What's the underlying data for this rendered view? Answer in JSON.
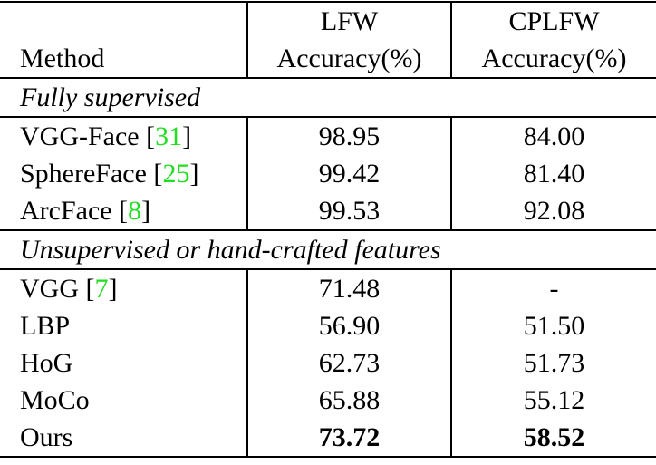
{
  "table": {
    "header": [
      [
        "",
        "LFW",
        "CPLFW"
      ],
      [
        "Method",
        "Accuracy(%)",
        "Accuracy(%)"
      ]
    ],
    "sections": [
      {
        "title": "Fully supervised",
        "rows": [
          {
            "method": [
              "VGG-Face [",
              "31",
              "]"
            ],
            "lfw": "98.95",
            "cplfw": "84.00"
          },
          {
            "method": [
              "SphereFace [",
              "25",
              "]"
            ],
            "lfw": "99.42",
            "cplfw": "81.40"
          },
          {
            "method": [
              "ArcFace [",
              "8",
              "]"
            ],
            "lfw": "99.53",
            "cplfw": "92.08"
          }
        ]
      },
      {
        "title": "Unsupervised or hand-crafted features",
        "rows": [
          {
            "method": [
              "VGG [",
              "7",
              "]"
            ],
            "lfw": "71.48",
            "cplfw": "-"
          },
          {
            "method": [
              "LBP"
            ],
            "lfw": "56.90",
            "cplfw": "51.50"
          },
          {
            "method": [
              "HoG"
            ],
            "lfw": "62.73",
            "cplfw": "51.73"
          },
          {
            "method": [
              "MoCo"
            ],
            "lfw": "65.88",
            "cplfw": "55.12"
          },
          {
            "method": [
              "Ours"
            ],
            "lfw": "73.72",
            "cplfw": "58.52",
            "bold": true
          }
        ]
      }
    ]
  }
}
